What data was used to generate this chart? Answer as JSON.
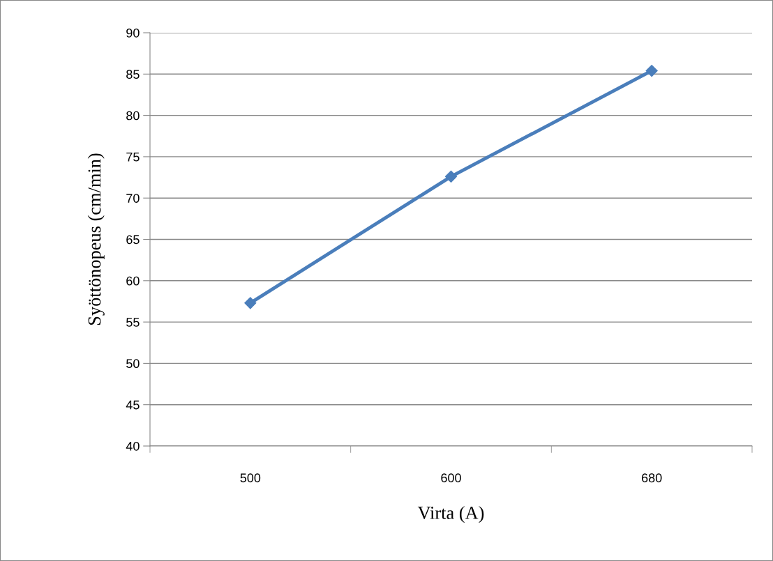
{
  "chart_data": {
    "type": "line",
    "xlabel": "Virta (A)",
    "ylabel": "Syöttönopeus (cm/min)",
    "categories": [
      "500",
      "600",
      "680"
    ],
    "series": [
      {
        "color": "#4a7ebb",
        "values": [
          57.3,
          72.6,
          85.4
        ]
      }
    ],
    "ylim": [
      40,
      90
    ],
    "yticks": [
      40,
      45,
      50,
      55,
      60,
      65,
      70,
      75,
      80,
      85,
      90
    ],
    "grid": "y",
    "marker": "diamond",
    "line_style": "solid",
    "legend": false
  }
}
